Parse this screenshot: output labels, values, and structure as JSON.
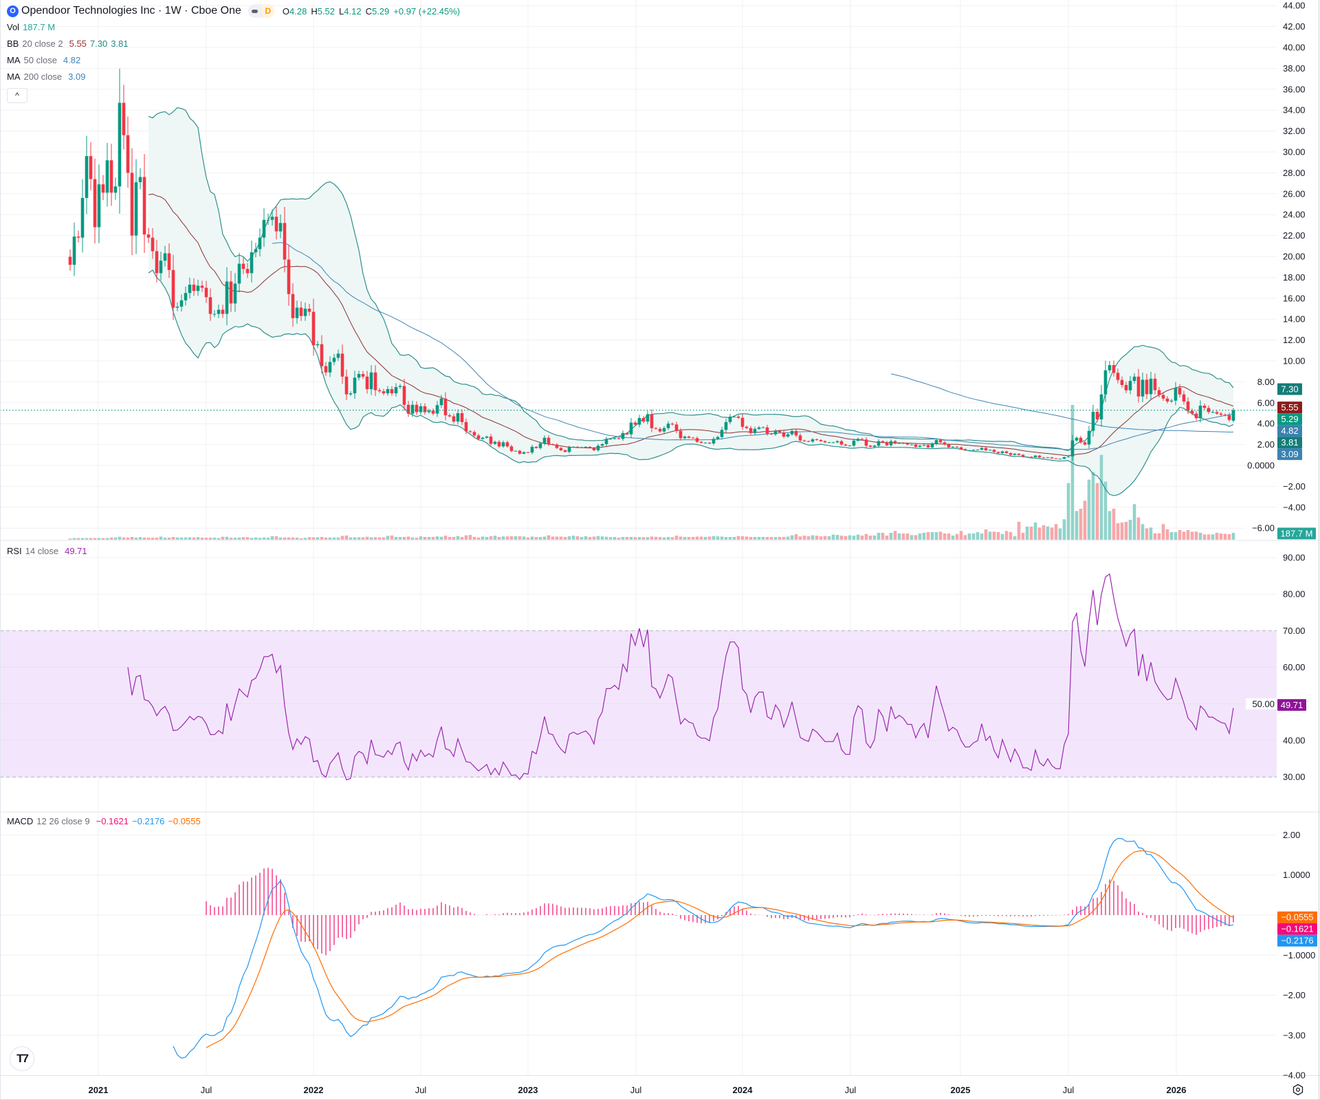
{
  "header": {
    "logo_letter": "O",
    "symbol_title": "Opendoor Technologies Inc · 1W · Cboe One",
    "market_status_badge": "D",
    "ohlc": {
      "o_label": "O",
      "o": "4.28",
      "h_label": "H",
      "h": "5.52",
      "l_label": "L",
      "l": "4.12",
      "c_label": "C",
      "c": "5.29",
      "change": "+0.97 (+22.45%)"
    }
  },
  "legend": {
    "vol": {
      "name": "Vol",
      "value": "187.7 M"
    },
    "bb": {
      "name": "BB",
      "params": "20 close 2",
      "basis": "5.55",
      "upper": "7.30",
      "lower": "3.81"
    },
    "ma50": {
      "name": "MA",
      "params": "50 close",
      "value": "4.82"
    },
    "ma200": {
      "name": "MA",
      "params": "200 close",
      "value": "3.09"
    },
    "collapse_icon": "^"
  },
  "rsi_legend": {
    "name": "RSI",
    "params": "14 close",
    "value": "49.71"
  },
  "macd_legend": {
    "name": "MACD",
    "params": "12 26 close 9",
    "histogram": "−0.1621",
    "macd": "−0.2176",
    "signal": "−0.0555"
  },
  "badges": {
    "main": [
      {
        "text": "7.30",
        "value": 7.3,
        "color": "#157d78"
      },
      {
        "text": "5.55",
        "value": 5.55,
        "color": "#8b1d1d"
      },
      {
        "text": "5.29",
        "value": 5.29,
        "color": "#089981"
      },
      {
        "text": "4.82",
        "value": 4.82,
        "color": "#3b82b2"
      },
      {
        "text": "3.81",
        "value": 3.81,
        "color": "#157d78"
      },
      {
        "text": "3.09",
        "value": 3.09,
        "color": "#3b82b2"
      }
    ],
    "volume": {
      "text": "187.7 M",
      "color": "#26a69a"
    },
    "rsi": {
      "text": "49.71",
      "value": 49.71,
      "color": "#8e1599"
    },
    "macd": [
      {
        "text": "−0.0555",
        "value": -0.0555,
        "color": "#ff6d00"
      },
      {
        "text": "−0.1621",
        "value": -0.1621,
        "color": "#f50a7a"
      },
      {
        "text": "−0.2176",
        "value": -0.2176,
        "color": "#2196f3"
      }
    ]
  },
  "colors": {
    "up": "#089981",
    "down": "#f23645",
    "volume_up": "#92d3cb",
    "volume_down": "#f7a7a9",
    "bb_band": "#2f8f8b",
    "bb_fill": "#eef7f6",
    "bb_basis": "#8b2f2f",
    "ma50": "#3f84b5",
    "ma200": "#3f84b5",
    "rsi_line": "#9c27b0",
    "rsi_band": "#f3e6fc",
    "macd_line": "#2196f3",
    "signal_line": "#ff6d00",
    "histogram": "#f2307f"
  },
  "axes": {
    "price_ticks": [
      "44.00",
      "42.00",
      "40.00",
      "38.00",
      "36.00",
      "34.00",
      "32.00",
      "30.00",
      "28.00",
      "26.00",
      "24.00",
      "22.00",
      "20.00",
      "18.00",
      "16.00",
      "14.00",
      "12.00",
      "10.00",
      "8.00",
      "6.00",
      "4.00",
      "2.00",
      "0.0000",
      "−2.00",
      "−4.00",
      "−6.00"
    ],
    "rsi_ticks": [
      "90.00",
      "80.00",
      "70.00",
      "60.00",
      "50.00",
      "40.00",
      "30.00"
    ],
    "macd_ticks": [
      "2.00",
      "1.0000",
      "−1.0000",
      "−2.00",
      "−3.00",
      "−4.00"
    ],
    "time_ticks": [
      {
        "label": "2021",
        "bold": true
      },
      {
        "label": "Jul",
        "bold": false
      },
      {
        "label": "2022",
        "bold": true
      },
      {
        "label": "Jul",
        "bold": false
      },
      {
        "label": "2023",
        "bold": true
      },
      {
        "label": "Jul",
        "bold": false
      },
      {
        "label": "2024",
        "bold": true
      },
      {
        "label": "Jul",
        "bold": false
      },
      {
        "label": "2025",
        "bold": true
      },
      {
        "label": "Jul",
        "bold": false
      },
      {
        "label": "2026",
        "bold": true
      }
    ]
  },
  "chart_data": {
    "type": "candlestick",
    "interval": "1W",
    "price_scale": "linear",
    "ylim": [
      -6,
      44
    ],
    "rsi_ylim": [
      30,
      90
    ],
    "rsi_band": [
      30,
      70
    ],
    "macd_ylim": [
      -4,
      2
    ],
    "last_bar": {
      "open": 4.28,
      "high": 5.52,
      "low": 4.12,
      "close": 5.29,
      "volume_millions": 187.7
    },
    "current_price": 5.29,
    "close": [
      19.2,
      21.9,
      21.8,
      25.6,
      29.6,
      27.4,
      22.8,
      26.9,
      26.1,
      29.2,
      26.1,
      26.7,
      34.7,
      31.6,
      28.0,
      22.0,
      27.1,
      27.6,
      22.1,
      21.8,
      20.5,
      18.4,
      19.6,
      20.3,
      18.7,
      15.1,
      15.2,
      15.8,
      16.5,
      17.3,
      16.7,
      17.2,
      17.0,
      16.1,
      14.5,
      14.5,
      14.9,
      14.5,
      17.6,
      15.5,
      17.4,
      19.3,
      18.8,
      18.4,
      20.4,
      20.7,
      21.8,
      23.5,
      23.5,
      23.8,
      22.4,
      23.2,
      19.7,
      16.4,
      14.1,
      15.1,
      14.3,
      15.0,
      14.7,
      11.5,
      11.6,
      9.5,
      8.9,
      9.9,
      10.3,
      10.7,
      8.5,
      6.8,
      6.9,
      8.4,
      8.75,
      8.5,
      7.3,
      8.9,
      7.2,
      7.1,
      6.9,
      7.3,
      6.9,
      7.5,
      7.6,
      5.8,
      4.95,
      5.8,
      5.1,
      5.66,
      5.1,
      5.24,
      4.96,
      5.77,
      6.4,
      4.8,
      4.7,
      4.2,
      5.0,
      4.15,
      3.27,
      3.2,
      2.87,
      2.54,
      2.65,
      2.76,
      2.06,
      2.26,
      1.82,
      2.21,
      1.82,
      1.38,
      1.4,
      1.12,
      1.27,
      1.23,
      1.78,
      1.67,
      2.1,
      2.65,
      2.04,
      2.0,
      1.67,
      1.45,
      1.3,
      1.73,
      1.78,
      1.71,
      1.75,
      1.78,
      1.67,
      1.45,
      1.89,
      2.04,
      2.54,
      2.54,
      2.61,
      2.54,
      3.1,
      2.98,
      4.1,
      3.9,
      4.54,
      4.2,
      4.9,
      3.57,
      3.5,
      3.25,
      3.57,
      4.0,
      3.92,
      3.3,
      2.61,
      2.76,
      2.65,
      2.61,
      2.26,
      2.17,
      2.17,
      2.1,
      2.54,
      2.72,
      3.4,
      4.15,
      4.67,
      4.67,
      4.56,
      3.7,
      3.57,
      3.1,
      3.5,
      3.64,
      3.64,
      3.05,
      2.98,
      3.3,
      3.16,
      2.76,
      2.98,
      3.3,
      2.87,
      2.39,
      2.32,
      2.28,
      2.5,
      2.43,
      2.32,
      2.21,
      2.21,
      2.21,
      2.32,
      2.0,
      1.9,
      1.9,
      2.37,
      2.54,
      2.48,
      1.89,
      1.78,
      1.89,
      2.32,
      2.21,
      1.93,
      2.32,
      2.1,
      2.15,
      2.1,
      2.0,
      2.0,
      1.78,
      1.89,
      1.95,
      1.73,
      2.06,
      2.43,
      2.21,
      2.0,
      1.73,
      1.78,
      1.73,
      1.56,
      1.45,
      1.45,
      1.49,
      1.51,
      1.67,
      1.45,
      1.49,
      1.29,
      1.18,
      1.34,
      1.18,
      1.01,
      1.12,
      1.01,
      0.83,
      0.83,
      0.79,
      0.94,
      0.77,
      0.72,
      0.77,
      0.68,
      0.64,
      0.64,
      0.79,
      0.86,
      2.39,
      2.65,
      2.21,
      2.0,
      3.31,
      5.13,
      4.41,
      6.8,
      9.1,
      9.6,
      8.86,
      8.18,
      7.7,
      7.19,
      8.09,
      8.5,
      6.6,
      8.2,
      6.82,
      8.3,
      7.2,
      6.75,
      6.4,
      6.12,
      6.2,
      7.43,
      6.8,
      6.12,
      5.24,
      4.96,
      4.52,
      5.72,
      5.5,
      5.11,
      5.11,
      4.96,
      4.85,
      4.8,
      4.36,
      5.29
    ],
    "volume_millions": [
      30,
      45,
      45,
      45,
      45,
      45,
      45,
      45,
      45,
      45,
      60,
      60,
      80,
      60,
      60,
      75,
      55,
      70,
      60,
      55,
      55,
      55,
      85,
      55,
      55,
      75,
      60,
      60,
      60,
      65,
      60,
      70,
      55,
      55,
      55,
      55,
      45,
      80,
      80,
      55,
      55,
      60,
      70,
      70,
      50,
      60,
      50,
      60,
      55,
      95,
      95,
      60,
      60,
      60,
      60,
      55,
      40,
      50,
      70,
      65,
      65,
      75,
      60,
      60,
      60,
      60,
      105,
      115,
      65,
      65,
      65,
      65,
      80,
      65,
      65,
      65,
      65,
      105,
      115,
      75,
      75,
      75,
      85,
      60,
      55,
      90,
      75,
      75,
      75,
      90,
      80,
      110,
      75,
      75,
      100,
      75,
      120,
      130,
      75,
      60,
      85,
      75,
      95,
      110,
      75,
      90,
      90,
      95,
      95,
      95,
      85,
      60,
      85,
      75,
      75,
      85,
      120,
      85,
      85,
      85,
      75,
      95,
      110,
      95,
      75,
      95,
      75,
      85,
      100,
      90,
      80,
      70,
      75,
      55,
      75,
      75,
      75,
      70,
      70,
      70,
      70,
      85,
      80,
      75,
      60,
      75,
      70,
      110,
      85,
      75,
      75,
      75,
      85,
      85,
      75,
      85,
      100,
      90,
      85,
      75,
      75,
      75,
      100,
      95,
      85,
      75,
      75,
      75,
      75,
      75,
      75,
      70,
      75,
      75,
      85,
      120,
      150,
      90,
      110,
      95,
      120,
      110,
      90,
      100,
      95,
      140,
      130,
      110,
      100,
      120,
      110,
      140,
      113,
      156,
      113,
      113,
      188,
      188,
      113,
      188,
      238,
      169,
      169,
      169,
      125,
      125,
      169,
      188,
      206,
      206,
      206,
      219,
      169,
      169,
      113,
      156,
      238,
      125,
      169,
      169,
      206,
      169,
      282,
      219,
      219,
      206,
      156,
      238,
      206,
      94,
      488,
      188,
      357,
      357,
      469,
      332,
      394,
      363,
      332,
      425,
      307,
      557,
      1545,
      3679,
      782,
      845,
      1064,
      1639,
      1846,
      1545,
      2315,
      1583,
      782,
      845,
      450,
      469,
      488,
      544,
      970,
      607,
      425,
      307,
      332,
      175,
      175,
      425,
      282,
      206,
      206,
      263,
      219,
      263,
      219,
      219,
      188,
      144,
      144,
      144,
      188,
      170,
      160,
      150,
      187.7
    ],
    "indicators": {
      "bollinger": {
        "length": 20,
        "source": "close",
        "mult": 2
      },
      "ma_fast": {
        "length": 50,
        "source": "close"
      },
      "ma_slow": {
        "length": 200,
        "source": "close"
      },
      "rsi": {
        "length": 14,
        "source": "close"
      },
      "macd": {
        "fast": 12,
        "slow": 26,
        "signal": 9,
        "source": "close"
      }
    }
  }
}
